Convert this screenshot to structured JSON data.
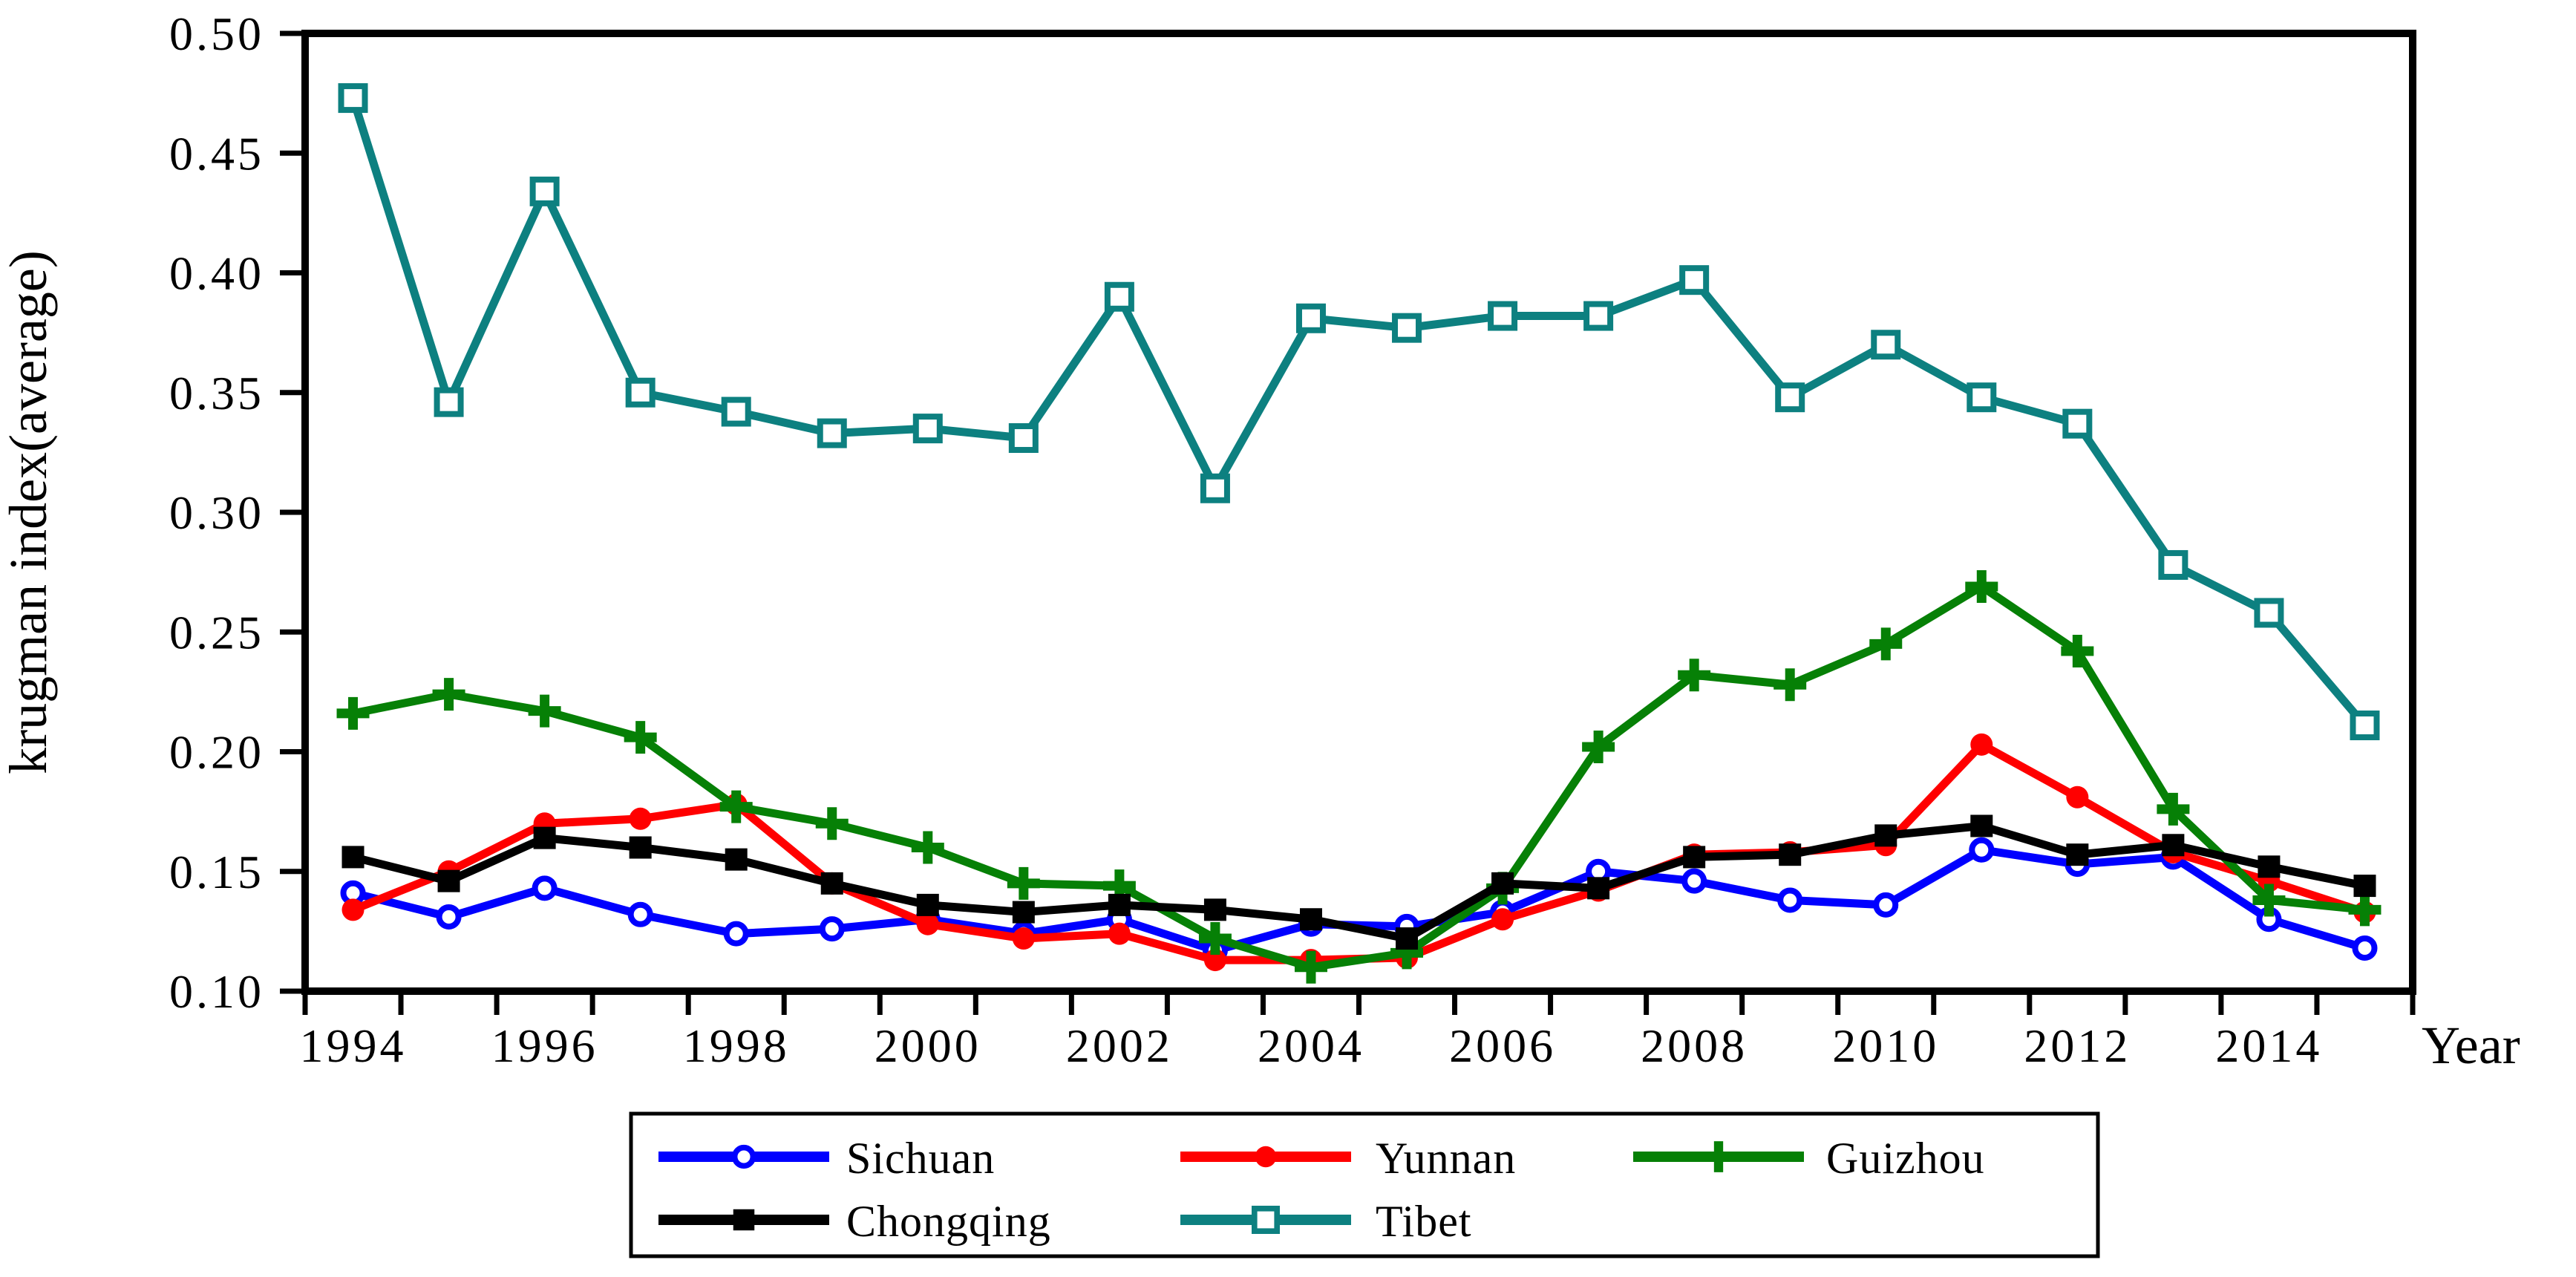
{
  "chart_data": {
    "type": "line",
    "title": "",
    "xlabel": "Year",
    "ylabel": "krugman index(average)",
    "x": [
      1994,
      1995,
      1996,
      1997,
      1998,
      1999,
      2000,
      2001,
      2002,
      2003,
      2004,
      2005,
      2006,
      2007,
      2008,
      2009,
      2010,
      2011,
      2012,
      2013,
      2014,
      2015
    ],
    "series": [
      {
        "name": "Sichuan",
        "color": "#0000ff",
        "marker": "open-circle",
        "values": [
          0.141,
          0.131,
          0.143,
          0.132,
          0.124,
          0.126,
          0.13,
          0.124,
          0.13,
          0.117,
          0.128,
          0.127,
          0.133,
          0.15,
          0.146,
          0.138,
          0.136,
          0.159,
          0.153,
          0.156,
          0.13,
          0.118
        ]
      },
      {
        "name": "Yunnan",
        "color": "#ff0000",
        "marker": "filled-circle",
        "values": [
          0.134,
          0.15,
          0.17,
          0.172,
          0.178,
          0.145,
          0.128,
          0.122,
          0.124,
          0.113,
          0.113,
          0.114,
          0.13,
          0.142,
          0.157,
          0.158,
          0.161,
          0.203,
          0.181,
          0.158,
          0.146,
          0.133
        ]
      },
      {
        "name": "Guizhou",
        "color": "#068006",
        "marker": "plus",
        "values": [
          0.216,
          0.224,
          0.217,
          0.206,
          0.177,
          0.17,
          0.16,
          0.145,
          0.144,
          0.122,
          0.11,
          0.116,
          0.143,
          0.202,
          0.232,
          0.228,
          0.245,
          0.269,
          0.242,
          0.176,
          0.138,
          0.134
        ]
      },
      {
        "name": "Chongqing",
        "color": "#000000",
        "marker": "filled-square",
        "values": [
          0.156,
          0.146,
          0.164,
          0.16,
          0.155,
          0.145,
          0.136,
          0.133,
          0.136,
          0.134,
          0.13,
          0.122,
          0.145,
          0.143,
          0.156,
          0.157,
          0.165,
          0.169,
          0.157,
          0.161,
          0.152,
          0.144
        ]
      },
      {
        "name": "Tibet",
        "color": "#0d8080",
        "marker": "open-square",
        "values": [
          0.473,
          0.346,
          0.434,
          0.35,
          0.342,
          0.333,
          0.335,
          0.331,
          0.39,
          0.31,
          0.381,
          0.377,
          0.382,
          0.382,
          0.397,
          0.348,
          0.37,
          0.348,
          0.337,
          0.278,
          0.258,
          0.211
        ]
      }
    ],
    "xlim": [
      1993.5,
      2015.5
    ],
    "ylim": [
      0.1,
      0.5
    ],
    "yticks": [
      0.1,
      0.15,
      0.2,
      0.25,
      0.3,
      0.35,
      0.4,
      0.45,
      0.5
    ],
    "ytick_labels": [
      "0.10",
      "0.15",
      "0.20",
      "0.25",
      "0.30",
      "0.35",
      "0.40",
      "0.45",
      "0.50"
    ],
    "xtick_label_years": [
      1994,
      1996,
      1998,
      2000,
      2002,
      2004,
      2006,
      2008,
      2010,
      2012,
      2014
    ],
    "xtick_labels": [
      "1994",
      "1996",
      "1998",
      "2000",
      "2002",
      "2004",
      "2006",
      "2008",
      "2010",
      "2012",
      "2014"
    ],
    "grid": false,
    "legend_position": "bottom-center",
    "legend_rows": [
      [
        "Sichuan",
        "Yunnan",
        "Guizhou"
      ],
      [
        "Chongqing",
        "Tibet"
      ]
    ]
  }
}
